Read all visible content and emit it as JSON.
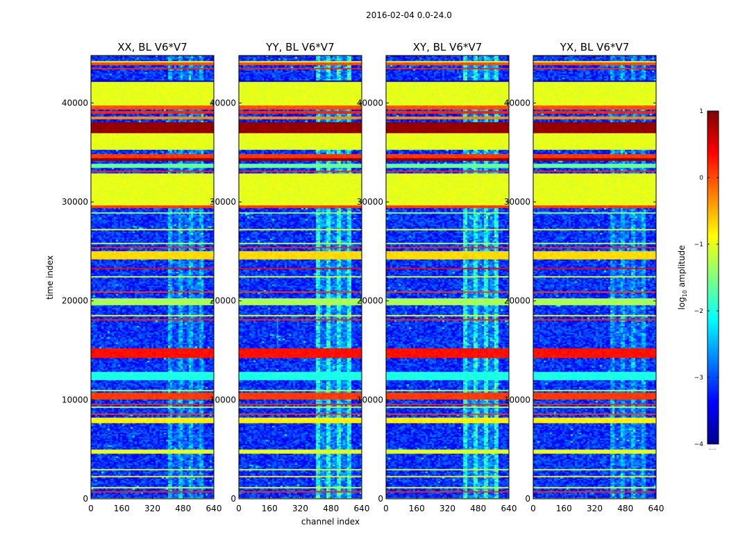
{
  "chart_data": {
    "type": "heatmap",
    "title": "2016-02-04 0.0-24.0",
    "xlabel": "channel index",
    "ylabel": "time index",
    "xlim": [
      0,
      640
    ],
    "ylim": [
      0,
      44800
    ],
    "x_ticks": [
      "0",
      "160",
      "320",
      "480",
      "640"
    ],
    "x_tick_values": [
      0,
      160,
      320,
      480,
      640
    ],
    "y_ticks": [
      "0",
      "10000",
      "20000",
      "30000",
      "40000"
    ],
    "y_tick_values": [
      0,
      10000,
      20000,
      30000,
      40000
    ],
    "panels": [
      {
        "title": "XX, BL V6*V7",
        "rfi_strength": 0.55,
        "has_vertical_line": false
      },
      {
        "title": "YY, BL V6*V7",
        "rfi_strength": 1.0,
        "has_vertical_line": true,
        "vertical_line_channel": 200
      },
      {
        "title": "XY, BL V6*V7",
        "rfi_strength": 1.0,
        "has_vertical_line": false
      },
      {
        "title": "YX, BL V6*V7",
        "rfi_strength": 0.55,
        "has_vertical_line": false
      }
    ],
    "rfi_channel_range": [
      400,
      590
    ],
    "colorbar": {
      "label": "log10 amplitude",
      "label_main": "log",
      "label_sub": "10",
      "label_tail": " amplitude",
      "range": [
        -4,
        1
      ],
      "ticks": [
        "1",
        "0",
        "−1",
        "−2",
        "−3",
        "−4"
      ],
      "tick_values": [
        1,
        0,
        -1,
        -2,
        -3,
        -4
      ],
      "colormap": "jet",
      "extra_label": "....."
    },
    "bands": [
      {
        "y0": 0,
        "y1": 130,
        "level": -1.2
      },
      {
        "y0": 600,
        "y1": 780,
        "level": 0.2
      },
      {
        "y0": 1100,
        "y1": 1250,
        "level": -1.0
      },
      {
        "y0": 2200,
        "y1": 2300,
        "level": -0.8
      },
      {
        "y0": 2900,
        "y1": 3000,
        "level": -1.1
      },
      {
        "y0": 4600,
        "y1": 5000,
        "level": -1.0
      },
      {
        "y0": 5200,
        "y1": 5300,
        "level": 0.3
      },
      {
        "y0": 5900,
        "y1": 6000,
        "level": -0.5
      },
      {
        "y0": 7700,
        "y1": 8200,
        "level": -0.8
      },
      {
        "y0": 8500,
        "y1": 8600,
        "level": 0.1
      },
      {
        "y0": 9200,
        "y1": 9300,
        "level": -1.2
      },
      {
        "y0": 9500,
        "y1": 9600,
        "level": 0.2
      },
      {
        "y0": 9700,
        "y1": 9800,
        "level": -1.5
      },
      {
        "y0": 10000,
        "y1": 10700,
        "level": 0.1
      },
      {
        "y0": 10900,
        "y1": 11000,
        "level": -1.2
      },
      {
        "y0": 12000,
        "y1": 12800,
        "level": -2.0
      },
      {
        "y0": 14300,
        "y1": 15200,
        "level": 0.3
      },
      {
        "y0": 15300,
        "y1": 15400,
        "level": -1.5
      },
      {
        "y0": 16000,
        "y1": 16100,
        "level": -1.0
      },
      {
        "y0": 17000,
        "y1": 17100,
        "level": -1.3
      },
      {
        "y0": 18000,
        "y1": 18100,
        "level": 0.2
      },
      {
        "y0": 18500,
        "y1": 18600,
        "level": -0.9
      },
      {
        "y0": 19500,
        "y1": 20300,
        "level": -1.3
      },
      {
        "y0": 20800,
        "y1": 20900,
        "level": 0.1
      },
      {
        "y0": 22400,
        "y1": 22500,
        "level": -1.0
      },
      {
        "y0": 23200,
        "y1": 23300,
        "level": 0.4
      },
      {
        "y0": 24200,
        "y1": 25000,
        "level": -0.7
      },
      {
        "y0": 25300,
        "y1": 25400,
        "level": 0.2
      },
      {
        "y0": 25800,
        "y1": 25900,
        "level": -1.2
      },
      {
        "y0": 26400,
        "y1": 26500,
        "level": 0.1
      },
      {
        "y0": 27200,
        "y1": 27300,
        "level": -1.0
      },
      {
        "y0": 28200,
        "y1": 28300,
        "level": 0.3
      },
      {
        "y0": 28800,
        "y1": 28900,
        "level": -1.4
      },
      {
        "y0": 29400,
        "y1": 29600,
        "level": 0.1
      },
      {
        "y0": 29600,
        "y1": 32900,
        "level": -1.0
      },
      {
        "y0": 33000,
        "y1": 33200,
        "level": 0.2
      },
      {
        "y0": 33500,
        "y1": 33900,
        "level": -1.6
      },
      {
        "y0": 34200,
        "y1": 34400,
        "level": 0.9
      },
      {
        "y0": 34400,
        "y1": 34800,
        "level": 0.1
      },
      {
        "y0": 35300,
        "y1": 36900,
        "level": -1.0
      },
      {
        "y0": 37000,
        "y1": 38000,
        "level": 0.9
      },
      {
        "y0": 38300,
        "y1": 38600,
        "level": -0.3
      },
      {
        "y0": 38900,
        "y1": 39200,
        "level": 0.2
      },
      {
        "y0": 39400,
        "y1": 39700,
        "level": 0.0
      },
      {
        "y0": 39700,
        "y1": 42100,
        "level": -1.0
      },
      {
        "y0": 42200,
        "y1": 42300,
        "level": -3.8
      },
      {
        "y0": 43400,
        "y1": 43600,
        "level": 0.2
      },
      {
        "y0": 43800,
        "y1": 44100,
        "level": 0.0
      },
      {
        "y0": 44100,
        "y1": 44300,
        "level": -1.0
      }
    ]
  }
}
